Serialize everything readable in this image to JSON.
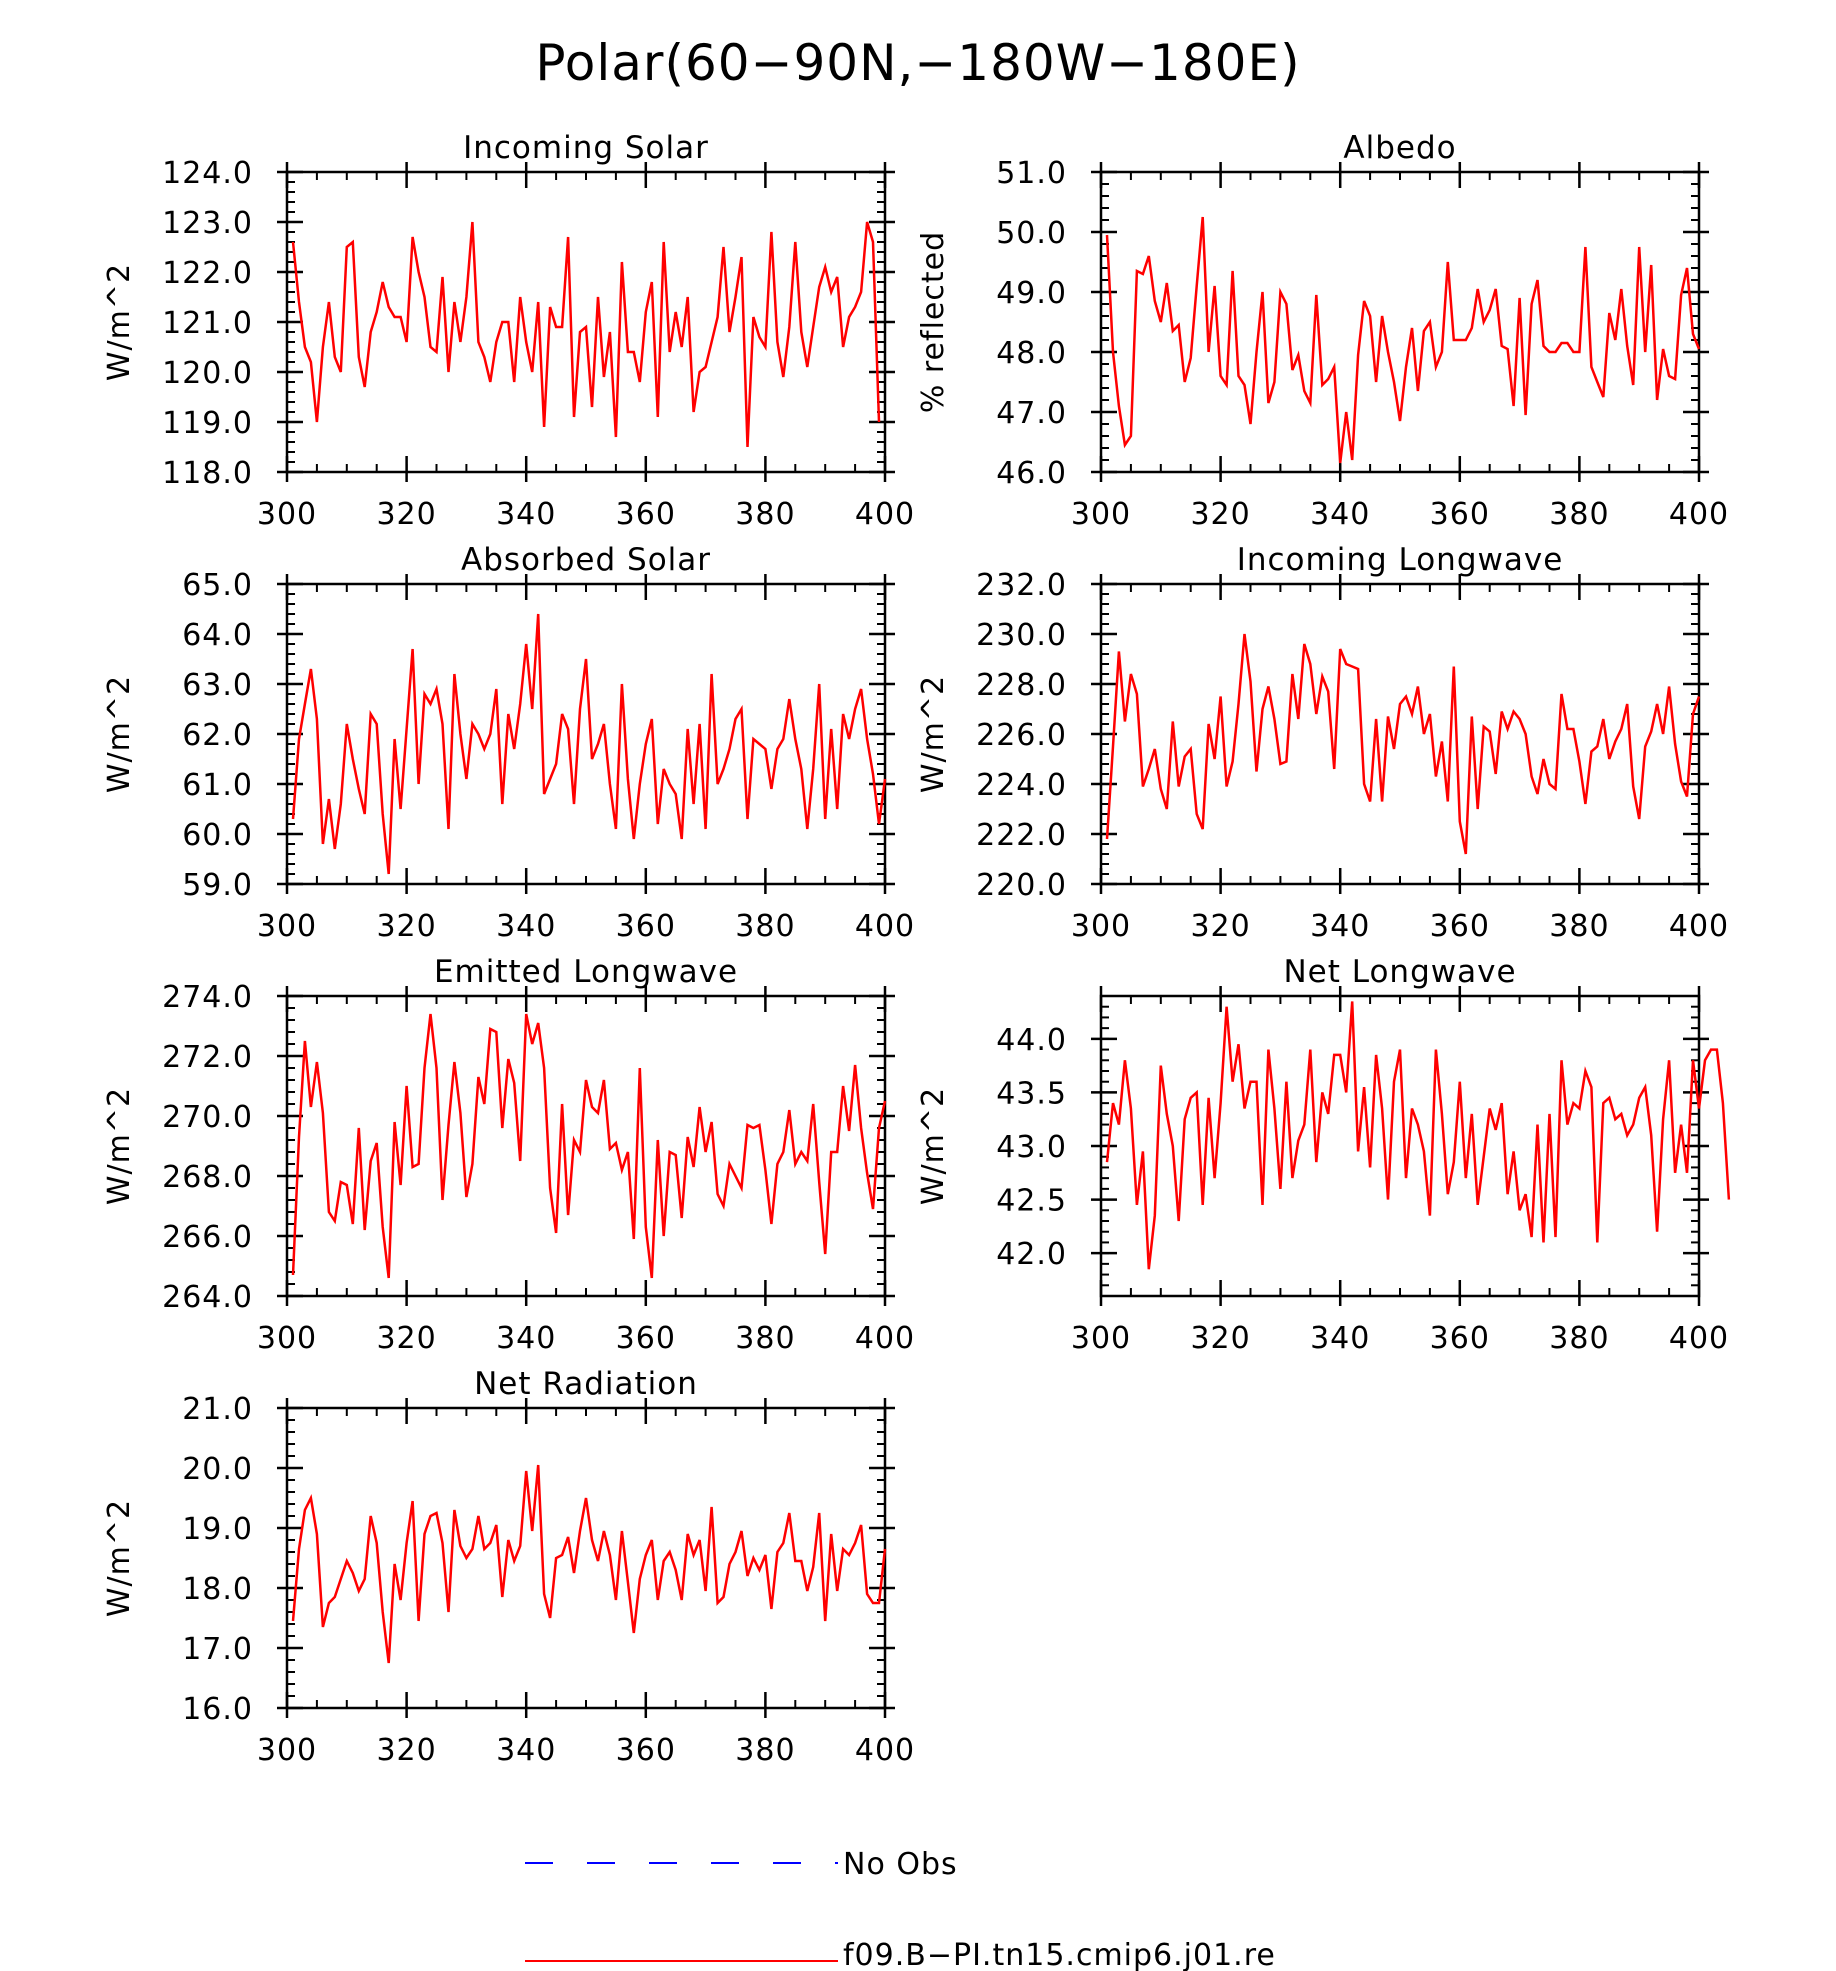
{
  "page_title": "Polar(60−90N,−180W−180E)",
  "colors": {
    "model_line": "#ff0000",
    "obs_line": "#0000ff",
    "axis": "#000000"
  },
  "legend": {
    "obs_label": "No Obs",
    "model_label": "f09.B−PI.tn15.cmip6.j01.re"
  },
  "chart_data": [
    {
      "type": "line",
      "title": "Incoming Solar",
      "ylabel": "W/m^2",
      "xlim": [
        300,
        400
      ],
      "ylim": [
        118,
        124
      ],
      "xticks": [
        300,
        320,
        340,
        360,
        380,
        400
      ],
      "xtick_labels": [
        "300",
        "320",
        "340",
        "360",
        "380",
        "400"
      ],
      "yticks": [
        118,
        119,
        120,
        121,
        122,
        123,
        124
      ],
      "ytick_labels": [
        "118.0",
        "119.0",
        "120.0",
        "121.0",
        "122.0",
        "123.0",
        "124.0"
      ],
      "x_start": 301,
      "series": [
        {
          "values": [
            122.6,
            121.4,
            120.5,
            120.2,
            119.0,
            120.5,
            121.4,
            120.3,
            120.0,
            122.5,
            122.6,
            120.3,
            119.7,
            120.8,
            121.2,
            121.8,
            121.3,
            121.1,
            121.1,
            120.6,
            122.7,
            122.0,
            121.5,
            120.5,
            120.4,
            121.9,
            120.0,
            121.4,
            120.6,
            121.5,
            123.0,
            120.6,
            120.3,
            119.8,
            120.6,
            121.0,
            121.0,
            119.8,
            121.5,
            120.6,
            120.0,
            121.4,
            118.9,
            121.3,
            120.9,
            120.9,
            122.7,
            119.1,
            120.8,
            120.9,
            119.3,
            121.5,
            119.9,
            120.8,
            118.7,
            122.2,
            120.4,
            120.4,
            119.8,
            121.2,
            121.8,
            119.1,
            122.6,
            120.4,
            121.2,
            120.5,
            121.5,
            119.2,
            120.0,
            120.1,
            120.6,
            121.1,
            122.5,
            120.8,
            121.5,
            122.3,
            118.5,
            121.1,
            120.7,
            120.5,
            122.8,
            120.6,
            119.9,
            120.9,
            122.6,
            120.8,
            120.1,
            120.9,
            121.7,
            122.1,
            121.6,
            121.9,
            120.5,
            121.1,
            121.3,
            121.6,
            123.0,
            122.6,
            119.0
          ]
        }
      ]
    },
    {
      "type": "line",
      "title": "Albedo",
      "ylabel": "% reflected",
      "xlim": [
        300,
        400
      ],
      "ylim": [
        46,
        51
      ],
      "xticks": [
        300,
        320,
        340,
        360,
        380,
        400
      ],
      "xtick_labels": [
        "300",
        "320",
        "340",
        "360",
        "380",
        "400"
      ],
      "yticks": [
        46,
        47,
        48,
        49,
        50,
        51
      ],
      "ytick_labels": [
        "46.0",
        "47.0",
        "48.0",
        "49.0",
        "50.0",
        "51.0"
      ],
      "x_start": 301,
      "series": [
        {
          "values": [
            49.95,
            48.0,
            47.1,
            46.45,
            46.6,
            49.35,
            49.3,
            49.6,
            48.85,
            48.5,
            49.15,
            48.35,
            48.45,
            47.5,
            47.9,
            49.1,
            50.25,
            48.0,
            49.1,
            47.6,
            47.45,
            49.35,
            47.6,
            47.45,
            46.8,
            48.0,
            49.0,
            47.15,
            47.5,
            49.0,
            48.8,
            47.7,
            47.95,
            47.35,
            47.15,
            48.95,
            47.45,
            47.55,
            47.75,
            46.15,
            47.0,
            46.2,
            47.95,
            48.85,
            48.6,
            47.5,
            48.6,
            48.0,
            47.5,
            46.85,
            47.75,
            48.4,
            47.35,
            48.35,
            48.5,
            47.75,
            48.0,
            49.5,
            48.2,
            48.2,
            48.2,
            48.4,
            49.05,
            48.5,
            48.7,
            49.05,
            48.1,
            48.05,
            47.1,
            48.9,
            46.95,
            48.8,
            49.2,
            48.1,
            48.0,
            48.0,
            48.15,
            48.15,
            48.0,
            48.0,
            49.75,
            47.75,
            47.5,
            47.25,
            48.65,
            48.2,
            49.05,
            48.1,
            47.45,
            49.75,
            48.0,
            49.45,
            47.2,
            48.05,
            47.6,
            47.55,
            48.95,
            49.4,
            48.3,
            48.05
          ]
        }
      ]
    },
    {
      "type": "line",
      "title": "Absorbed Solar",
      "ylabel": "W/m^2",
      "xlim": [
        300,
        400
      ],
      "ylim": [
        59,
        65
      ],
      "xticks": [
        300,
        320,
        340,
        360,
        380,
        400
      ],
      "xtick_labels": [
        "300",
        "320",
        "340",
        "360",
        "380",
        "400"
      ],
      "yticks": [
        59,
        60,
        61,
        62,
        63,
        64,
        65
      ],
      "ytick_labels": [
        "59.0",
        "60.0",
        "61.0",
        "62.0",
        "63.0",
        "64.0",
        "65.0"
      ],
      "x_start": 301,
      "series": [
        {
          "values": [
            60.3,
            61.9,
            62.6,
            63.3,
            62.3,
            59.8,
            60.7,
            59.7,
            60.6,
            62.2,
            61.5,
            60.9,
            60.4,
            62.4,
            62.2,
            60.4,
            59.2,
            61.9,
            60.5,
            62.1,
            63.7,
            61.0,
            62.8,
            62.6,
            62.9,
            62.2,
            60.1,
            63.2,
            62.0,
            61.1,
            62.2,
            62.0,
            61.7,
            62.0,
            62.9,
            60.6,
            62.4,
            61.7,
            62.6,
            63.8,
            62.5,
            64.4,
            60.8,
            61.1,
            61.4,
            62.4,
            62.1,
            60.6,
            62.5,
            63.5,
            61.5,
            61.8,
            62.2,
            61.0,
            60.1,
            63.0,
            61.1,
            59.9,
            61.0,
            61.8,
            62.3,
            60.2,
            61.3,
            61.0,
            60.8,
            59.9,
            62.1,
            60.6,
            62.2,
            60.1,
            63.2,
            61.0,
            61.3,
            61.7,
            62.3,
            62.5,
            60.3,
            61.9,
            61.8,
            61.7,
            60.9,
            61.7,
            61.9,
            62.7,
            61.9,
            61.3,
            60.1,
            61.3,
            63.0,
            60.3,
            62.1,
            60.5,
            62.4,
            61.9,
            62.5,
            62.9,
            61.9,
            61.2,
            60.2,
            61.1
          ]
        }
      ]
    },
    {
      "type": "line",
      "title": "Incoming Longwave",
      "ylabel": "W/m^2",
      "xlim": [
        300,
        400
      ],
      "ylim": [
        220,
        232
      ],
      "xticks": [
        300,
        320,
        340,
        360,
        380,
        400
      ],
      "xtick_labels": [
        "300",
        "320",
        "340",
        "360",
        "380",
        "400"
      ],
      "yticks": [
        220,
        222,
        224,
        226,
        228,
        230,
        232
      ],
      "ytick_labels": [
        "220.0",
        "222.0",
        "224.0",
        "226.0",
        "228.0",
        "230.0",
        "232.0"
      ],
      "x_start": 301,
      "series": [
        {
          "values": [
            221.8,
            225.5,
            229.3,
            226.5,
            228.4,
            227.6,
            223.9,
            224.6,
            225.4,
            223.8,
            223.0,
            226.5,
            223.9,
            225.1,
            225.4,
            222.8,
            222.2,
            226.4,
            225.0,
            227.5,
            223.9,
            224.9,
            227.2,
            230.0,
            228.1,
            224.5,
            227.0,
            227.9,
            226.6,
            224.8,
            224.9,
            228.4,
            226.6,
            229.6,
            228.8,
            226.8,
            228.3,
            227.7,
            224.6,
            229.4,
            228.8,
            228.7,
            228.6,
            224.0,
            223.3,
            226.6,
            223.3,
            226.7,
            225.4,
            227.2,
            227.5,
            226.8,
            227.9,
            226.0,
            226.8,
            224.3,
            225.7,
            223.3,
            228.7,
            222.5,
            221.2,
            226.7,
            223.0,
            226.3,
            226.1,
            224.4,
            226.9,
            226.2,
            226.9,
            226.6,
            226.0,
            224.3,
            223.6,
            225.0,
            224.0,
            223.8,
            227.6,
            226.2,
            226.2,
            224.9,
            223.2,
            225.3,
            225.5,
            226.6,
            225.0,
            225.7,
            226.2,
            227.2,
            223.9,
            222.6,
            225.5,
            226.1,
            227.2,
            226.0,
            227.9,
            225.6,
            224.1,
            223.5,
            226.8,
            227.5
          ]
        }
      ]
    },
    {
      "type": "line",
      "title": "Emitted Longwave",
      "ylabel": "W/m^2",
      "xlim": [
        300,
        400
      ],
      "ylim": [
        264,
        274
      ],
      "xticks": [
        300,
        320,
        340,
        360,
        380,
        400
      ],
      "xtick_labels": [
        "300",
        "320",
        "340",
        "360",
        "380",
        "400"
      ],
      "yticks": [
        264,
        266,
        268,
        270,
        272,
        274
      ],
      "ytick_labels": [
        "264.0",
        "266.0",
        "268.0",
        "270.0",
        "272.0",
        "274.0"
      ],
      "x_start": 301,
      "series": [
        {
          "values": [
            264.7,
            269.3,
            272.5,
            270.3,
            271.8,
            270.1,
            266.8,
            266.5,
            267.8,
            267.7,
            266.4,
            269.6,
            266.2,
            268.5,
            269.1,
            266.3,
            264.6,
            269.8,
            267.7,
            271.0,
            268.3,
            268.4,
            271.6,
            273.4,
            271.6,
            267.2,
            269.7,
            271.8,
            270.1,
            267.3,
            268.4,
            271.3,
            270.4,
            272.9,
            272.8,
            269.6,
            271.9,
            271.1,
            268.5,
            273.4,
            272.4,
            273.1,
            271.6,
            267.6,
            266.1,
            270.4,
            266.7,
            269.2,
            268.8,
            271.2,
            270.3,
            270.1,
            271.2,
            268.9,
            269.1,
            268.2,
            268.8,
            265.9,
            271.6,
            266.3,
            264.6,
            269.2,
            266.0,
            268.8,
            268.7,
            266.6,
            269.3,
            268.3,
            270.3,
            268.8,
            269.8,
            267.4,
            267.0,
            268.4,
            268.0,
            267.6,
            269.7,
            269.6,
            269.7,
            268.2,
            266.4,
            268.4,
            268.8,
            270.2,
            268.4,
            268.8,
            268.5,
            270.4,
            267.8,
            265.4,
            268.8,
            268.8,
            271.0,
            269.5,
            271.7,
            269.6,
            268.1,
            266.9,
            269.6,
            270.5
          ]
        }
      ]
    },
    {
      "type": "line",
      "title": "Net Longwave",
      "ylabel": "W/m^2",
      "xlim": [
        300,
        400
      ],
      "ylim": [
        41.6,
        44.4
      ],
      "xticks": [
        300,
        320,
        340,
        360,
        380,
        400
      ],
      "xtick_labels": [
        "300",
        "320",
        "340",
        "360",
        "380",
        "400"
      ],
      "yticks": [
        42.0,
        42.5,
        43.0,
        43.5,
        44.0
      ],
      "ytick_labels": [
        "42.0",
        "42.5",
        "43.0",
        "43.5",
        "44.0"
      ],
      "x_start": 301,
      "series": [
        {
          "values": [
            42.85,
            43.4,
            43.2,
            43.8,
            43.35,
            42.45,
            42.95,
            41.85,
            42.35,
            43.75,
            43.3,
            43.0,
            42.3,
            43.25,
            43.45,
            43.5,
            42.45,
            43.45,
            42.7,
            43.4,
            44.3,
            43.6,
            43.95,
            43.35,
            43.6,
            43.6,
            42.45,
            43.9,
            43.35,
            42.6,
            43.6,
            42.7,
            43.05,
            43.2,
            43.9,
            42.85,
            43.5,
            43.3,
            43.85,
            43.85,
            43.5,
            44.35,
            42.95,
            43.55,
            42.8,
            43.85,
            43.35,
            42.5,
            43.6,
            43.9,
            42.7,
            43.35,
            43.2,
            42.95,
            42.35,
            43.9,
            43.3,
            42.55,
            42.85,
            43.6,
            42.7,
            43.3,
            42.45,
            42.9,
            43.35,
            43.15,
            43.4,
            42.55,
            42.95,
            42.4,
            42.55,
            42.15,
            43.2,
            42.1,
            43.3,
            42.15,
            43.8,
            43.2,
            43.4,
            43.35,
            43.7,
            43.55,
            42.1,
            43.4,
            43.45,
            43.25,
            43.3,
            43.1,
            43.2,
            43.45,
            43.55,
            43.1,
            42.2,
            43.25,
            43.8,
            42.75,
            43.2,
            42.75,
            43.8,
            43.35,
            43.8,
            43.9,
            43.9,
            43.4,
            42.5
          ]
        }
      ]
    },
    {
      "type": "line",
      "title": "Net Radiation",
      "ylabel": "W/m^2",
      "xlim": [
        300,
        400
      ],
      "ylim": [
        16,
        21
      ],
      "xticks": [
        300,
        320,
        340,
        360,
        380,
        400
      ],
      "xtick_labels": [
        "300",
        "320",
        "340",
        "360",
        "380",
        "400"
      ],
      "yticks": [
        16,
        17,
        18,
        19,
        20,
        21
      ],
      "ytick_labels": [
        "16.0",
        "17.0",
        "18.0",
        "19.0",
        "20.0",
        "21.0"
      ],
      "x_start": 301,
      "series": [
        {
          "values": [
            17.45,
            18.65,
            19.3,
            19.5,
            18.9,
            17.35,
            17.75,
            17.85,
            18.15,
            18.45,
            18.25,
            17.95,
            18.15,
            19.2,
            18.75,
            17.6,
            16.75,
            18.4,
            17.8,
            18.75,
            19.45,
            17.45,
            18.9,
            19.2,
            19.25,
            18.75,
            17.6,
            19.3,
            18.7,
            18.5,
            18.65,
            19.2,
            18.65,
            18.75,
            19.05,
            17.85,
            18.8,
            18.45,
            18.7,
            19.95,
            18.95,
            20.05,
            17.9,
            17.5,
            18.5,
            18.55,
            18.85,
            18.25,
            18.95,
            19.5,
            18.8,
            18.45,
            18.95,
            18.55,
            17.8,
            18.95,
            18.1,
            17.25,
            18.15,
            18.55,
            18.8,
            17.8,
            18.45,
            18.6,
            18.3,
            17.8,
            18.9,
            18.55,
            18.8,
            17.95,
            19.35,
            17.75,
            17.85,
            18.4,
            18.6,
            18.95,
            18.2,
            18.5,
            18.3,
            18.55,
            17.65,
            18.6,
            18.75,
            19.25,
            18.45,
            18.45,
            17.95,
            18.35,
            19.25,
            17.45,
            18.9,
            17.95,
            18.65,
            18.55,
            18.75,
            19.05,
            17.9,
            17.75,
            17.75,
            18.65
          ]
        }
      ]
    }
  ]
}
